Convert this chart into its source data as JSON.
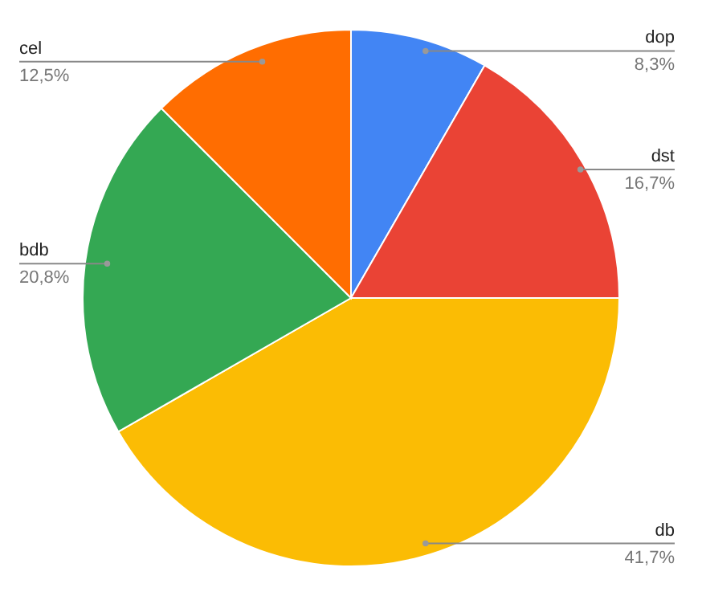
{
  "chart_data": {
    "type": "pie",
    "categories": [
      "dop",
      "dst",
      "db",
      "bdb",
      "cel"
    ],
    "values": [
      8.3,
      16.7,
      41.7,
      20.8,
      12.5
    ],
    "colors": [
      "#4285f4",
      "#ea4335",
      "#fbbc04",
      "#34a853",
      "#ff6d01"
    ],
    "value_labels": [
      "8,3%",
      "16,7%",
      "41,7%",
      "20,8%",
      "12,5%"
    ]
  }
}
